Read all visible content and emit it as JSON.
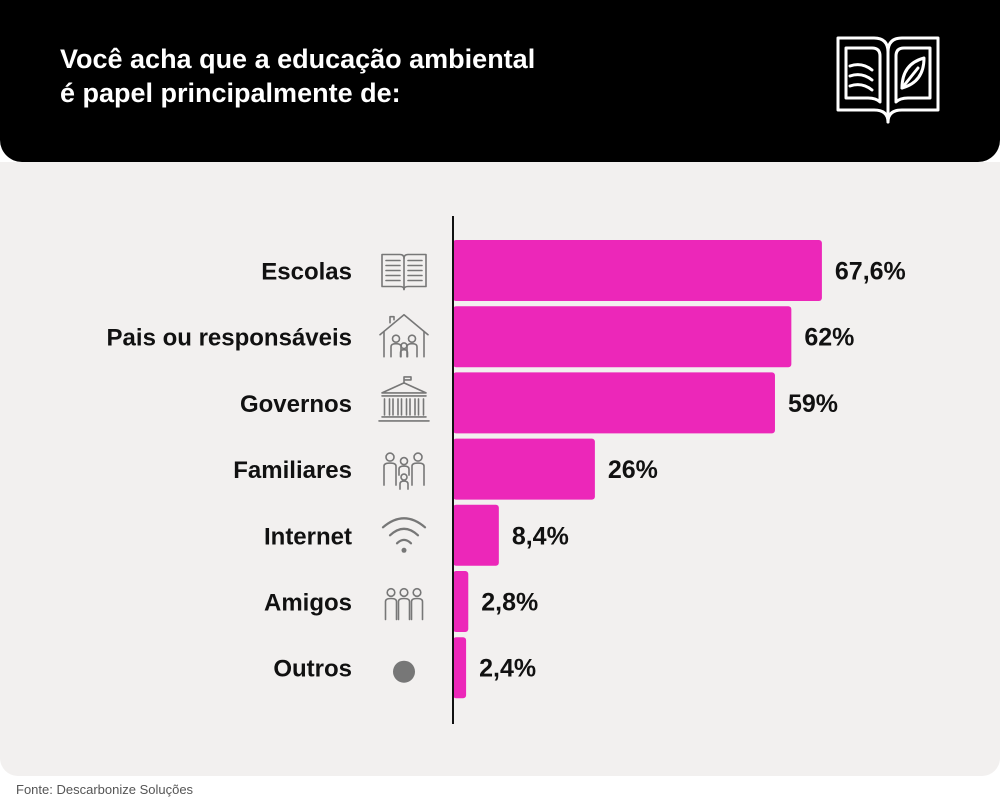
{
  "header": {
    "title_lines": [
      "Você acha que a educação ambiental",
      "é papel principalmente de:"
    ],
    "icon": "open-book-leaf-icon"
  },
  "colors": {
    "bar": "#ec27b9",
    "header_bg": "#000000",
    "panel_bg": "#f2f0ef",
    "axis": "#111111",
    "icon": "#777777"
  },
  "chart_data": {
    "type": "bar",
    "orientation": "horizontal",
    "categories": [
      "Escolas",
      "Pais ou responsáveis",
      "Governos",
      "Familiares",
      "Internet",
      "Amigos",
      "Outros"
    ],
    "values": [
      67.6,
      62,
      59,
      26,
      8.4,
      2.8,
      2.4
    ],
    "value_labels": [
      "67,6%",
      "62%",
      "59%",
      "26%",
      "8,4%",
      "2,8%",
      "2,4%"
    ],
    "icons": [
      "book-icon",
      "family-house-icon",
      "government-building-icon",
      "family-group-icon",
      "wifi-icon",
      "friends-group-icon",
      "dot-icon"
    ],
    "xlim": [
      0,
      70
    ],
    "grid": false
  },
  "source": "Fonte: Descarbonize Soluções"
}
